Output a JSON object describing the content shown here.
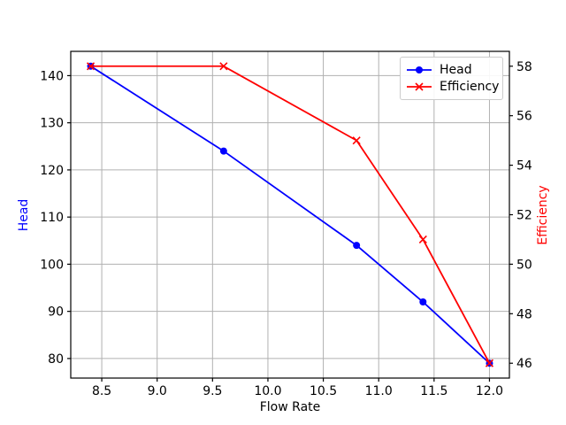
{
  "figure": {
    "background": "#ffffff",
    "spine_color": "#000000",
    "tick_label_color": "#000000"
  },
  "chart_data": {
    "type": "line",
    "x": [
      8.4,
      9.6,
      10.8,
      11.4,
      12.0
    ],
    "series": [
      {
        "name": "Head",
        "axis": "left",
        "color": "#0000ff",
        "marker": "circle",
        "values": [
          142,
          124,
          104,
          92,
          79
        ]
      },
      {
        "name": "Efficiency",
        "axis": "right",
        "color": "#ff0000",
        "marker": "x",
        "values": [
          58,
          58,
          55,
          51,
          46
        ]
      }
    ],
    "title": "",
    "xlabel": "Flow Rate",
    "ylabel_left": "Head",
    "ylabel_left_color": "#0000ff",
    "ylabel_right": "Efficiency",
    "ylabel_right_color": "#ff0000",
    "x_tick_labels": [
      "8.5",
      "9.0",
      "9.5",
      "10.0",
      "10.5",
      "11.0",
      "11.5",
      "12.0"
    ],
    "y_ticks_left": [
      80,
      90,
      100,
      110,
      120,
      130,
      140
    ],
    "y_ticks_right": [
      46,
      48,
      50,
      52,
      54,
      56,
      58
    ],
    "xlim": [
      8.22,
      12.18
    ],
    "ylim_left": [
      75.85,
      145.15
    ],
    "ylim_right": [
      45.4,
      58.6
    ],
    "grid": true,
    "grid_color": "#b0b0b0",
    "legend": {
      "position": "upper right",
      "entries": [
        "Head",
        "Efficiency"
      ]
    }
  }
}
